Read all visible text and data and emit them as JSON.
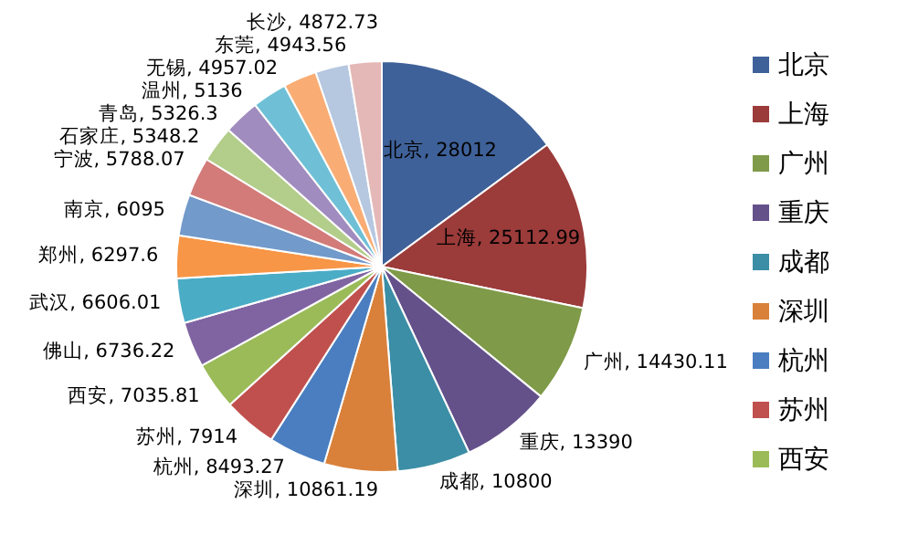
{
  "chart_data": {
    "type": "pie",
    "categories": [
      "北京",
      "上海",
      "广州",
      "重庆",
      "成都",
      "深圳",
      "杭州",
      "苏州",
      "西安",
      "佛山",
      "武汉",
      "郑州",
      "南京",
      "宁波",
      "石家庄",
      "青岛",
      "温州",
      "无锡",
      "东莞",
      "长沙"
    ],
    "values": [
      28012,
      25112.99,
      14430.11,
      13390,
      10800,
      10861.19,
      8493.27,
      7914,
      7035.81,
      6736.22,
      6606.01,
      6297.6,
      6095,
      5788.07,
      5348.2,
      5326.3,
      5136,
      4957.02,
      4943.56,
      4872.73
    ],
    "value_labels": [
      ", 28012",
      ", 25112.99",
      ", 14430.11",
      ", 13390",
      ", 10800",
      ", 10861.19",
      ", 8493.27",
      ", 7914",
      ", 7035.81",
      ", 6736.22",
      ", 6606.01",
      ", 6297.6",
      ", 6095",
      ", 5788.07",
      ", 5348.2",
      ", 5326.3",
      ", 5136",
      ", 4957.02",
      ", 4943.56",
      ", 4872.73"
    ],
    "colors": [
      "#3f6199",
      "#9b3b3a",
      "#7f9a48",
      "#64518a",
      "#3b8ea5",
      "#d9813a",
      "#4a7ec0",
      "#c0504d",
      "#9bbb59",
      "#8064a2",
      "#4bacc6",
      "#f79646",
      "#729aca",
      "#d37b79",
      "#b3cd8a",
      "#a08cbe",
      "#6fc0d6",
      "#f9ad74",
      "#b6c7e0",
      "#e4b8b7"
    ],
    "legend": "right"
  }
}
